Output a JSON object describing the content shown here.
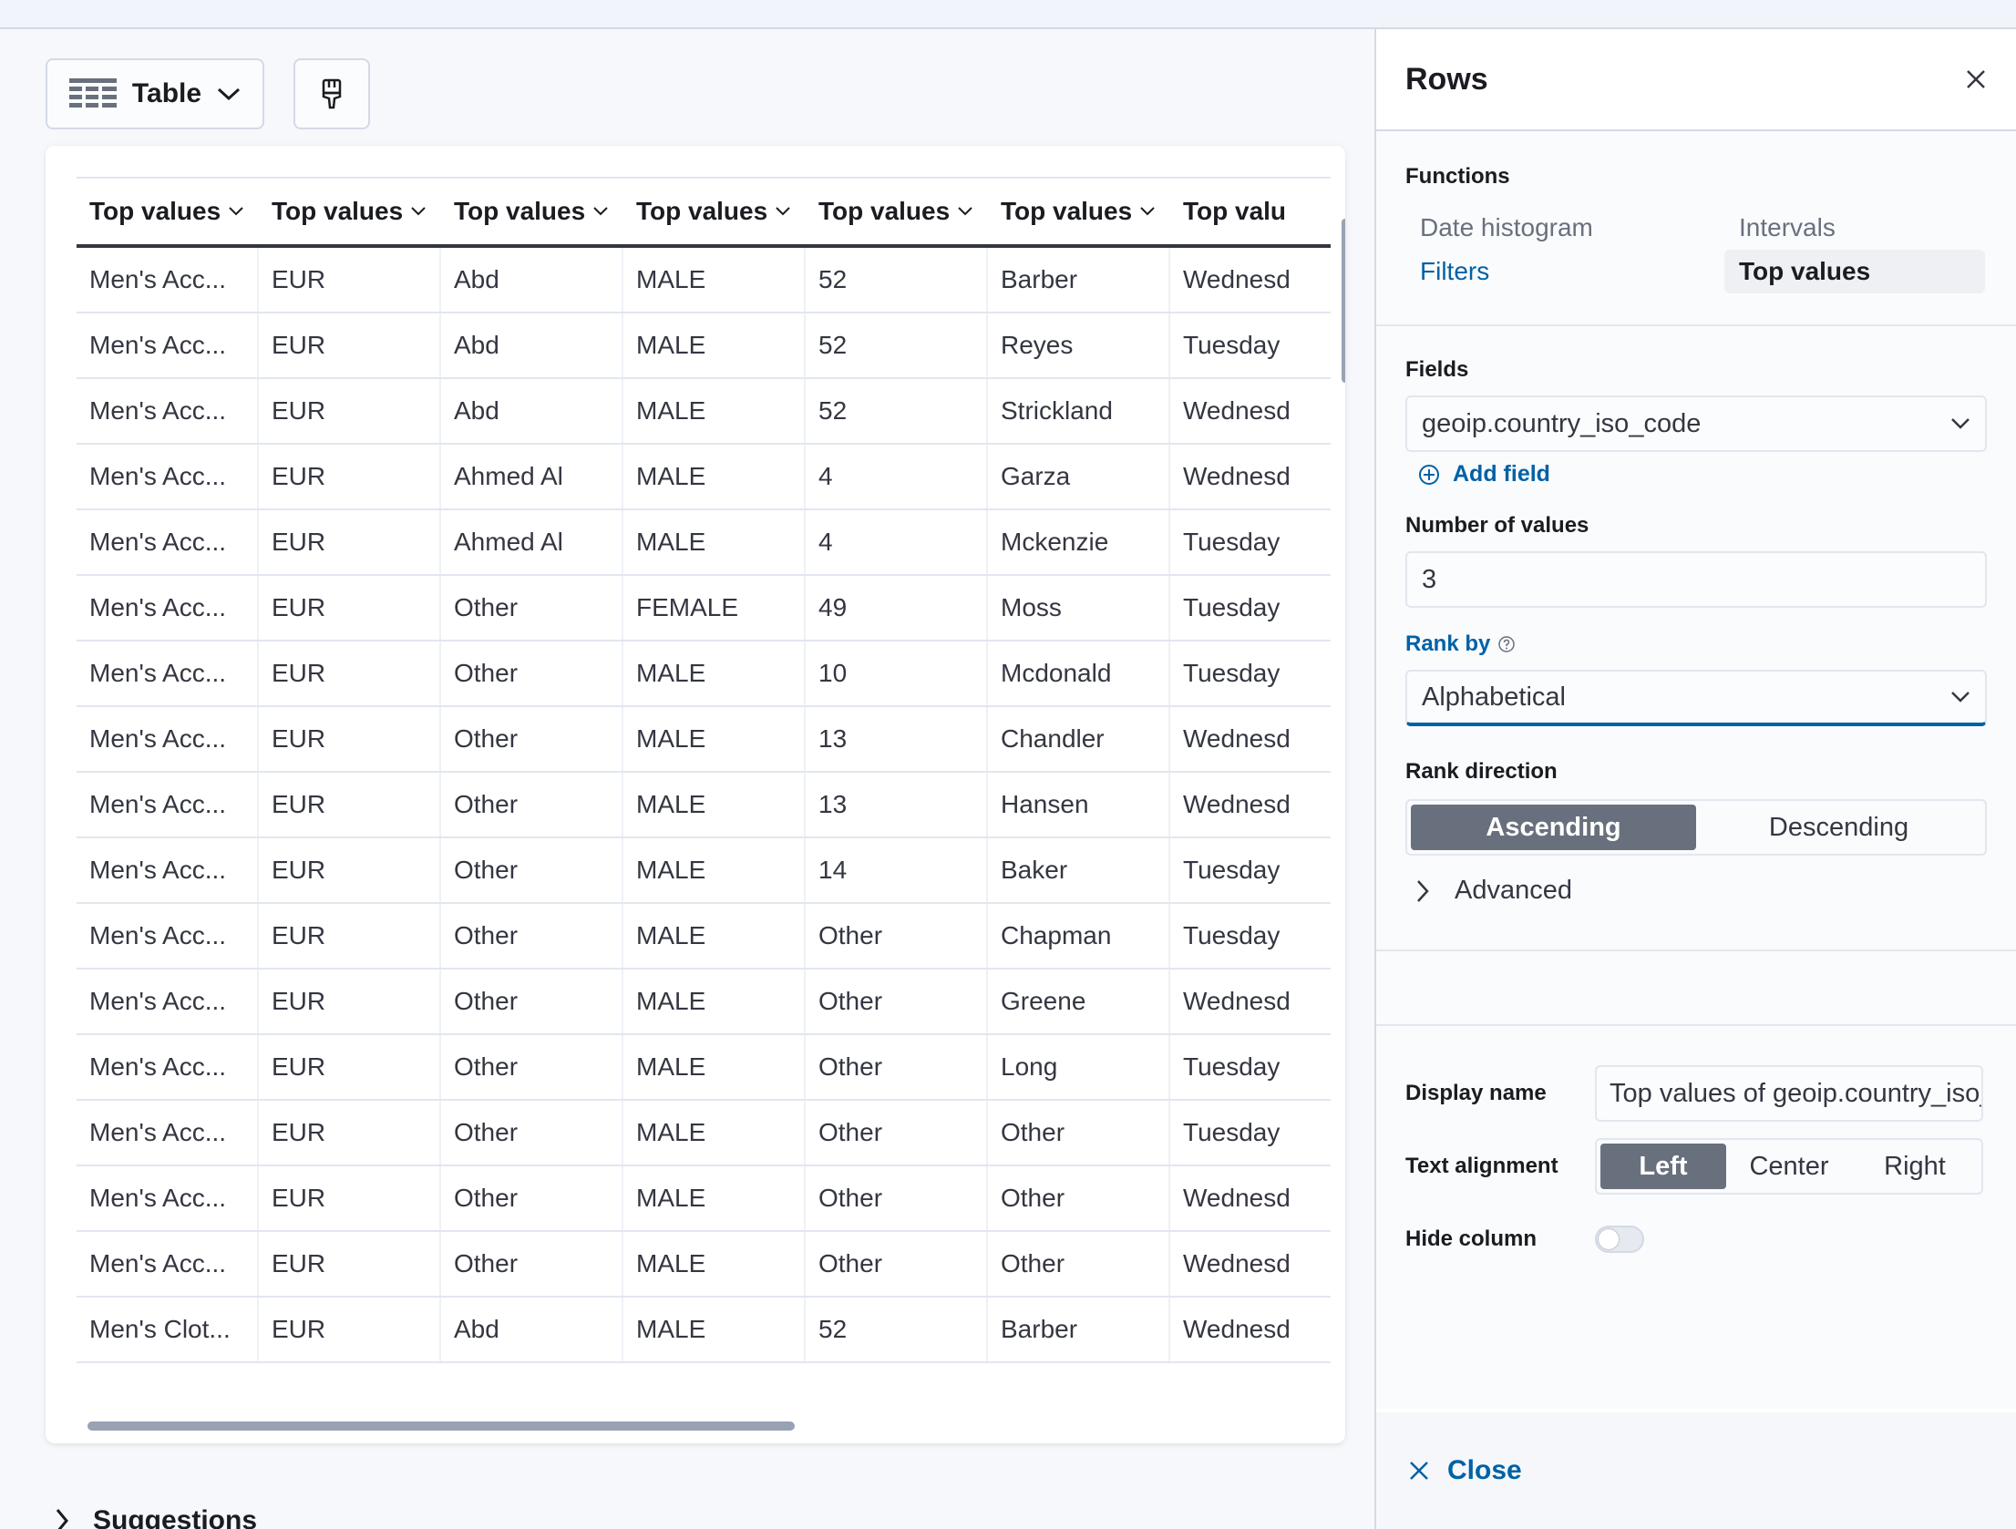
{
  "toolbar": {
    "chart_type_label": "Table"
  },
  "table": {
    "headers": [
      "Top values",
      "Top values",
      "Top values",
      "Top values",
      "Top values",
      "Top values",
      "Top valu"
    ],
    "rows": [
      [
        "Men's Acc...",
        "EUR",
        "Abd",
        "MALE",
        "52",
        "Barber",
        "Wednesd"
      ],
      [
        "Men's Acc...",
        "EUR",
        "Abd",
        "MALE",
        "52",
        "Reyes",
        "Tuesday"
      ],
      [
        "Men's Acc...",
        "EUR",
        "Abd",
        "MALE",
        "52",
        "Strickland",
        "Wednesd"
      ],
      [
        "Men's Acc...",
        "EUR",
        "Ahmed Al",
        "MALE",
        "4",
        "Garza",
        "Wednesd"
      ],
      [
        "Men's Acc...",
        "EUR",
        "Ahmed Al",
        "MALE",
        "4",
        "Mckenzie",
        "Tuesday"
      ],
      [
        "Men's Acc...",
        "EUR",
        "Other",
        "FEMALE",
        "49",
        "Moss",
        "Tuesday"
      ],
      [
        "Men's Acc...",
        "EUR",
        "Other",
        "MALE",
        "10",
        "Mcdonald",
        "Tuesday"
      ],
      [
        "Men's Acc...",
        "EUR",
        "Other",
        "MALE",
        "13",
        "Chandler",
        "Wednesd"
      ],
      [
        "Men's Acc...",
        "EUR",
        "Other",
        "MALE",
        "13",
        "Hansen",
        "Wednesd"
      ],
      [
        "Men's Acc...",
        "EUR",
        "Other",
        "MALE",
        "14",
        "Baker",
        "Tuesday"
      ],
      [
        "Men's Acc...",
        "EUR",
        "Other",
        "MALE",
        "Other",
        "Chapman",
        "Tuesday"
      ],
      [
        "Men's Acc...",
        "EUR",
        "Other",
        "MALE",
        "Other",
        "Greene",
        "Wednesd"
      ],
      [
        "Men's Acc...",
        "EUR",
        "Other",
        "MALE",
        "Other",
        "Long",
        "Tuesday"
      ],
      [
        "Men's Acc...",
        "EUR",
        "Other",
        "MALE",
        "Other",
        "Other",
        "Tuesday"
      ],
      [
        "Men's Acc...",
        "EUR",
        "Other",
        "MALE",
        "Other",
        "Other",
        "Wednesd"
      ],
      [
        "Men's Acc...",
        "EUR",
        "Other",
        "MALE",
        "Other",
        "Other",
        "Wednesd"
      ],
      [
        "Men's Clot...",
        "EUR",
        "Abd",
        "MALE",
        "52",
        "Barber",
        "Wednesd"
      ]
    ]
  },
  "suggestions_label": "Suggestions",
  "flyout": {
    "title": "Rows",
    "functions_label": "Functions",
    "functions": {
      "date_histogram": "Date histogram",
      "intervals": "Intervals",
      "filters": "Filters",
      "top_values": "Top values"
    },
    "fields_label": "Fields",
    "field_value": "geoip.country_iso_code",
    "add_field": "Add field",
    "num_values_label": "Number of values",
    "num_values": "3",
    "rank_by_label": "Rank by",
    "rank_by_value": "Alphabetical",
    "rank_direction_label": "Rank direction",
    "rank_direction": {
      "ascending": "Ascending",
      "descending": "Descending",
      "selected": "Ascending"
    },
    "advanced_label": "Advanced",
    "display_name_label": "Display name",
    "display_name_value": "Top values of geoip.country_iso_code",
    "text_alignment_label": "Text alignment",
    "alignment": {
      "left": "Left",
      "center": "Center",
      "right": "Right",
      "selected": "Left"
    },
    "hide_column_label": "Hide column",
    "hide_column": false,
    "close_label": "Close"
  },
  "colors": {
    "accent": "#0061a6",
    "selected_button": "#69707d",
    "text": "#343741"
  }
}
